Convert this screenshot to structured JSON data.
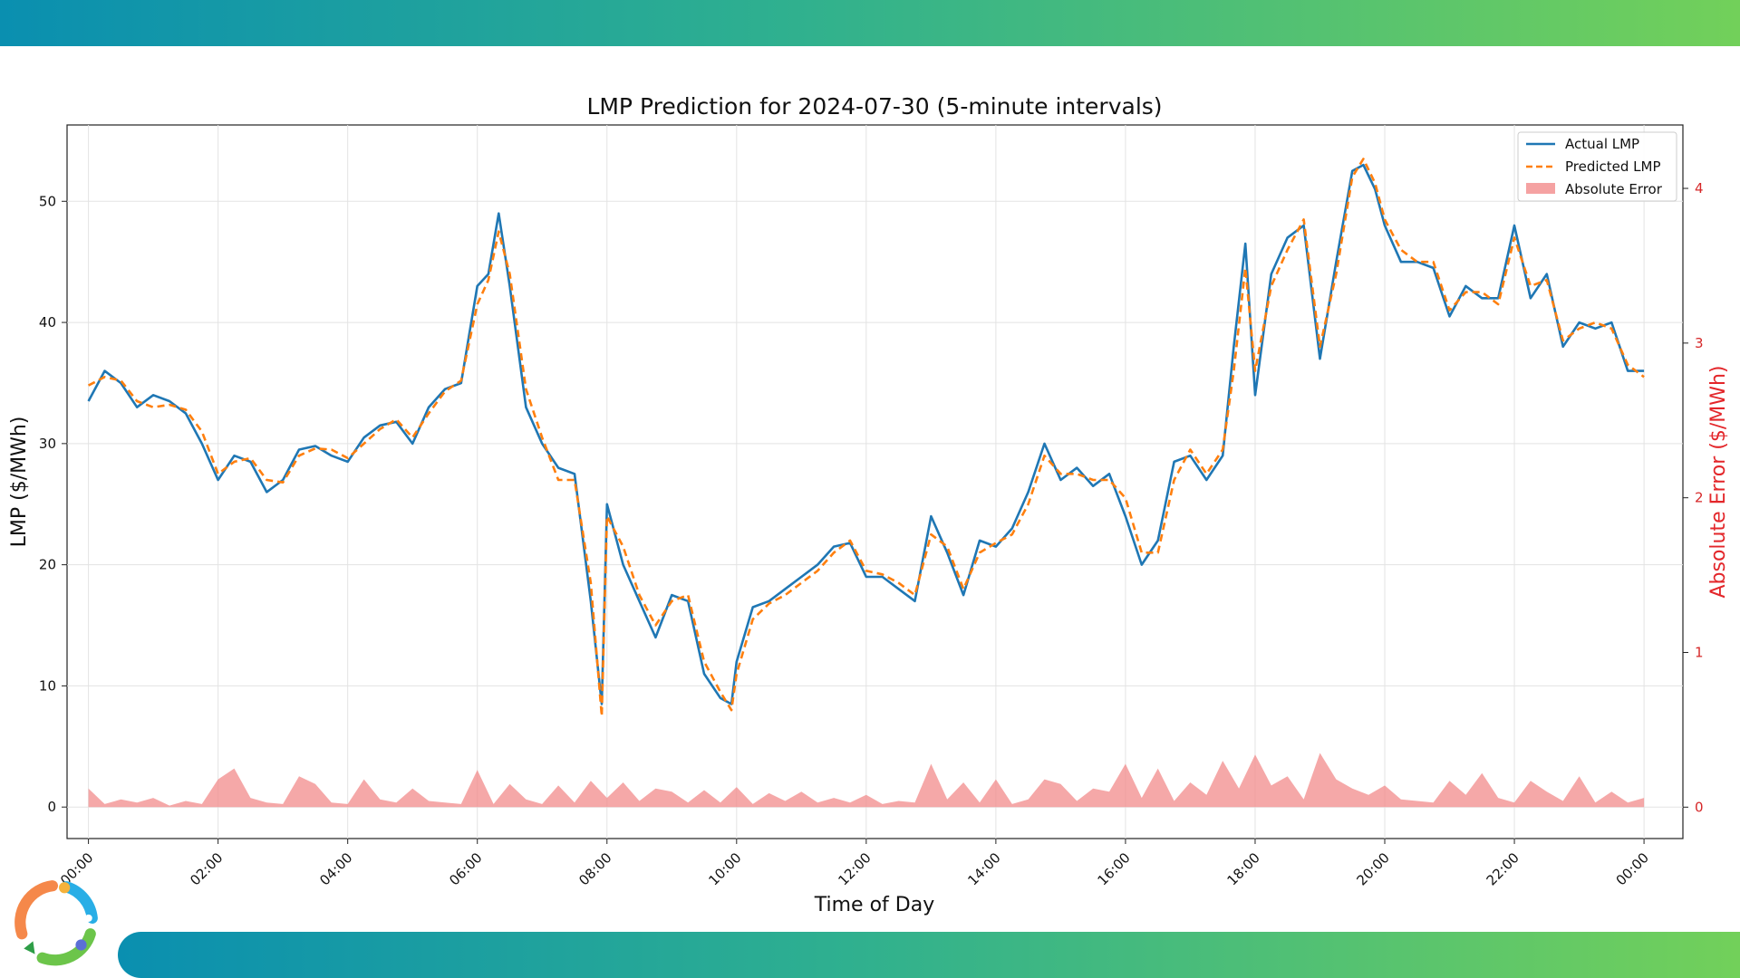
{
  "colors": {
    "actual": "#1f77b4",
    "predicted": "#ff7f0e",
    "error_fill": "#f28b8b",
    "right_axis": "#d62728",
    "band_start": "#0a8fb0",
    "band_end": "#72d05a"
  },
  "chart_data": {
    "type": "line",
    "title": "LMP Prediction for 2024-07-30 (5-minute intervals)",
    "xlabel": "Time of Day",
    "ylabel": "LMP ($/MWh)",
    "ylabel_right": "Absolute Error ($/MWh)",
    "x_ticks": [
      "00:00",
      "02:00",
      "04:00",
      "06:00",
      "08:00",
      "10:00",
      "12:00",
      "14:00",
      "16:00",
      "18:00",
      "20:00",
      "22:00",
      "00:00"
    ],
    "x_range_hours": [
      -0.33,
      24.6
    ],
    "ylim": [
      -2.6,
      56.3
    ],
    "y_ticks": [
      0,
      10,
      20,
      30,
      40,
      50
    ],
    "ylim_right": [
      -0.203,
      4.41
    ],
    "y_ticks_right": [
      0,
      1,
      2,
      3,
      4
    ],
    "grid": true,
    "legend_position": "top-right",
    "series": [
      {
        "name": "Actual LMP",
        "style": "solid",
        "x_hours": [
          0,
          0.25,
          0.5,
          0.75,
          1.0,
          1.25,
          1.5,
          1.75,
          2.0,
          2.25,
          2.5,
          2.75,
          3.0,
          3.25,
          3.5,
          3.75,
          4.0,
          4.25,
          4.5,
          4.75,
          5.0,
          5.25,
          5.5,
          5.75,
          6.0,
          6.17,
          6.33,
          6.5,
          6.75,
          7.0,
          7.25,
          7.5,
          7.75,
          7.92,
          8.0,
          8.25,
          8.5,
          8.75,
          9.0,
          9.25,
          9.5,
          9.75,
          9.92,
          10.0,
          10.25,
          10.5,
          10.75,
          11.0,
          11.25,
          11.5,
          11.75,
          12.0,
          12.25,
          12.5,
          12.75,
          13.0,
          13.25,
          13.5,
          13.75,
          14.0,
          14.25,
          14.5,
          14.75,
          15.0,
          15.25,
          15.5,
          15.75,
          16.0,
          16.25,
          16.5,
          16.75,
          17.0,
          17.25,
          17.5,
          17.67,
          17.85,
          18.0,
          18.25,
          18.5,
          18.75,
          19.0,
          19.25,
          19.5,
          19.67,
          19.85,
          20.0,
          20.25,
          20.5,
          20.75,
          21.0,
          21.25,
          21.5,
          21.75,
          22.0,
          22.25,
          22.5,
          22.75,
          23.0,
          23.25,
          23.5,
          23.75,
          24.0
        ],
        "values": [
          33.5,
          36.0,
          35.0,
          33.0,
          34.0,
          33.5,
          32.5,
          30.0,
          27.0,
          29.0,
          28.5,
          26.0,
          27.0,
          29.5,
          29.8,
          29.0,
          28.5,
          30.5,
          31.5,
          31.8,
          30.0,
          33.0,
          34.5,
          35.0,
          43.0,
          44.0,
          49.0,
          43.0,
          33.0,
          30.0,
          28.0,
          27.5,
          17.0,
          8.5,
          25.0,
          20.0,
          17.0,
          14.0,
          17.5,
          17.0,
          11.0,
          9.0,
          8.5,
          12.0,
          16.5,
          17.0,
          18.0,
          19.0,
          20.0,
          21.5,
          21.8,
          19.0,
          19.0,
          18.0,
          17.0,
          24.0,
          21.0,
          17.5,
          22.0,
          21.5,
          23.0,
          26.0,
          30.0,
          27.0,
          28.0,
          26.5,
          27.5,
          24.0,
          20.0,
          22.0,
          28.5,
          29.0,
          27.0,
          29.0,
          38.0,
          46.5,
          34.0,
          44.0,
          47.0,
          48.0,
          37.0,
          45.0,
          52.5,
          53.0,
          51.0,
          48.0,
          45.0,
          45.0,
          44.5,
          40.5,
          43.0,
          42.0,
          42.0,
          48.0,
          42.0,
          44.0,
          38.0,
          40.0,
          39.5,
          40.0,
          36.0,
          36.0
        ]
      },
      {
        "name": "Predicted LMP",
        "style": "dashed",
        "x_hours": [
          0,
          0.25,
          0.5,
          0.75,
          1.0,
          1.25,
          1.5,
          1.75,
          2.0,
          2.25,
          2.5,
          2.75,
          3.0,
          3.25,
          3.5,
          3.75,
          4.0,
          4.25,
          4.5,
          4.75,
          5.0,
          5.25,
          5.5,
          5.75,
          6.0,
          6.17,
          6.33,
          6.5,
          6.75,
          7.0,
          7.25,
          7.5,
          7.75,
          7.92,
          8.0,
          8.25,
          8.5,
          8.75,
          9.0,
          9.25,
          9.5,
          9.75,
          9.92,
          10.0,
          10.25,
          10.5,
          10.75,
          11.0,
          11.25,
          11.5,
          11.75,
          12.0,
          12.25,
          12.5,
          12.75,
          13.0,
          13.25,
          13.5,
          13.75,
          14.0,
          14.25,
          14.5,
          14.75,
          15.0,
          15.25,
          15.5,
          15.75,
          16.0,
          16.25,
          16.5,
          16.75,
          17.0,
          17.25,
          17.5,
          17.67,
          17.85,
          18.0,
          18.25,
          18.5,
          18.75,
          19.0,
          19.25,
          19.5,
          19.67,
          19.85,
          20.0,
          20.25,
          20.5,
          20.75,
          21.0,
          21.25,
          21.5,
          21.75,
          22.0,
          22.25,
          22.5,
          22.75,
          23.0,
          23.25,
          23.5,
          23.75,
          24.0
        ],
        "values": [
          34.8,
          35.5,
          35.2,
          33.5,
          33.0,
          33.2,
          32.8,
          31.0,
          27.5,
          28.5,
          28.8,
          27.0,
          26.8,
          29.0,
          29.6,
          29.5,
          28.8,
          30.0,
          31.2,
          32.0,
          30.5,
          32.5,
          34.3,
          35.2,
          41.5,
          43.5,
          47.5,
          44.0,
          34.5,
          30.5,
          27.0,
          27.0,
          18.5,
          7.5,
          24.0,
          21.5,
          17.5,
          15.0,
          17.0,
          17.5,
          12.0,
          9.5,
          8.0,
          11.0,
          15.5,
          16.8,
          17.5,
          18.5,
          19.5,
          21.0,
          22.0,
          19.5,
          19.2,
          18.5,
          17.5,
          22.5,
          21.5,
          18.0,
          21.0,
          21.8,
          22.5,
          25.0,
          29.0,
          27.5,
          27.5,
          27.0,
          27.0,
          25.5,
          21.0,
          21.0,
          27.0,
          29.5,
          27.5,
          29.5,
          36.0,
          44.5,
          36.0,
          43.0,
          46.0,
          48.5,
          38.0,
          44.0,
          52.0,
          53.5,
          51.5,
          48.5,
          46.0,
          45.0,
          45.0,
          41.0,
          42.5,
          42.5,
          41.5,
          47.0,
          43.0,
          43.5,
          38.5,
          39.5,
          40.0,
          39.5,
          36.5,
          35.5
        ]
      },
      {
        "name": "Absolute Error",
        "style": "area",
        "axis": "right",
        "x_hours": [
          0,
          0.25,
          0.5,
          0.75,
          1.0,
          1.25,
          1.5,
          1.75,
          2.0,
          2.25,
          2.5,
          2.75,
          3.0,
          3.25,
          3.5,
          3.75,
          4.0,
          4.25,
          4.5,
          4.75,
          5.0,
          5.25,
          5.5,
          5.75,
          6.0,
          6.25,
          6.5,
          6.75,
          7.0,
          7.25,
          7.5,
          7.75,
          8.0,
          8.25,
          8.5,
          8.75,
          9.0,
          9.25,
          9.5,
          9.75,
          10.0,
          10.25,
          10.5,
          10.75,
          11.0,
          11.25,
          11.5,
          11.75,
          12.0,
          12.25,
          12.5,
          12.75,
          13.0,
          13.25,
          13.5,
          13.75,
          14.0,
          14.25,
          14.5,
          14.75,
          15.0,
          15.25,
          15.5,
          15.75,
          16.0,
          16.25,
          16.5,
          16.75,
          17.0,
          17.25,
          17.5,
          17.75,
          18.0,
          18.25,
          18.5,
          18.75,
          19.0,
          19.25,
          19.5,
          19.75,
          20.0,
          20.25,
          20.5,
          20.75,
          21.0,
          21.25,
          21.5,
          21.75,
          22.0,
          22.25,
          22.5,
          22.75,
          23.0,
          23.25,
          23.5,
          23.75,
          24.0
        ],
        "values": [
          0.12,
          0.02,
          0.05,
          0.03,
          0.06,
          0.01,
          0.04,
          0.02,
          0.18,
          0.25,
          0.06,
          0.03,
          0.02,
          0.2,
          0.15,
          0.03,
          0.02,
          0.18,
          0.05,
          0.03,
          0.12,
          0.04,
          0.03,
          0.02,
          0.24,
          0.02,
          0.15,
          0.05,
          0.02,
          0.14,
          0.03,
          0.17,
          0.06,
          0.16,
          0.04,
          0.12,
          0.1,
          0.03,
          0.11,
          0.03,
          0.13,
          0.02,
          0.09,
          0.04,
          0.1,
          0.03,
          0.06,
          0.03,
          0.08,
          0.02,
          0.04,
          0.03,
          0.28,
          0.05,
          0.16,
          0.03,
          0.18,
          0.02,
          0.05,
          0.18,
          0.15,
          0.04,
          0.12,
          0.1,
          0.28,
          0.06,
          0.25,
          0.04,
          0.16,
          0.08,
          0.3,
          0.12,
          0.34,
          0.14,
          0.2,
          0.05,
          0.35,
          0.18,
          0.12,
          0.08,
          0.14,
          0.05,
          0.04,
          0.03,
          0.17,
          0.08,
          0.22,
          0.06,
          0.03,
          0.17,
          0.1,
          0.04,
          0.2,
          0.03,
          0.1,
          0.03,
          0.06
        ]
      }
    ]
  }
}
